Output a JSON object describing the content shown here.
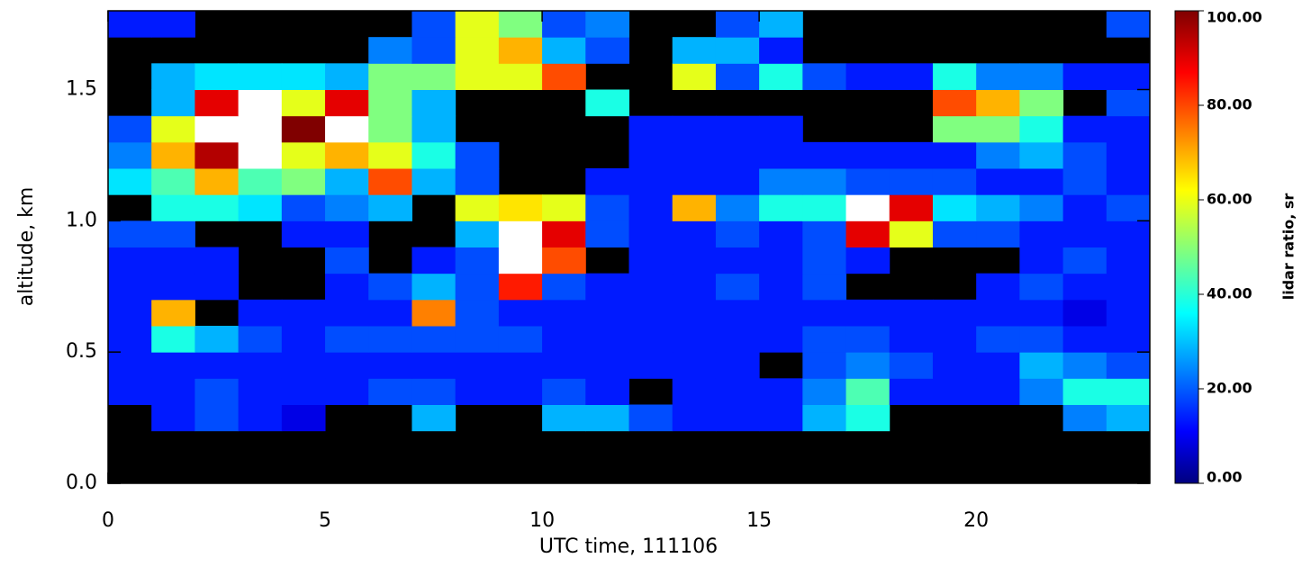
{
  "chart_data": {
    "type": "heatmap",
    "xlabel": "UTC time, 111106",
    "ylabel": "altitude, km",
    "zlabel": "lidar ratio, sr",
    "x": [
      0.5,
      1.5,
      2.5,
      3.5,
      4.5,
      5.5,
      6.5,
      7.5,
      8.5,
      9.5,
      10.5,
      11.5,
      12.5,
      13.5,
      14.5,
      15.5,
      16.5,
      17.5,
      18.5,
      19.5,
      20.5,
      21.5,
      22.5,
      23.5
    ],
    "y": [
      0.05,
      0.15,
      0.25,
      0.35,
      0.45,
      0.55,
      0.65,
      0.75,
      0.85,
      0.95,
      1.05,
      1.15,
      1.25,
      1.35,
      1.45,
      1.55,
      1.65,
      1.75
    ],
    "values": [
      [
        null,
        null,
        null,
        null,
        null,
        null,
        null,
        null,
        null,
        null,
        null,
        null,
        null,
        null,
        null,
        null,
        null,
        null,
        null,
        null,
        null,
        null,
        null,
        null
      ],
      [
        null,
        null,
        null,
        null,
        null,
        null,
        null,
        null,
        null,
        null,
        null,
        null,
        null,
        null,
        null,
        null,
        null,
        null,
        null,
        null,
        null,
        null,
        null,
        null
      ],
      [
        null,
        15,
        20,
        15,
        10,
        null,
        null,
        30,
        null,
        null,
        30,
        30,
        20,
        15,
        15,
        15,
        30,
        40,
        null,
        null,
        null,
        null,
        25,
        30
      ],
      [
        15,
        15,
        20,
        15,
        15,
        15,
        20,
        20,
        15,
        15,
        20,
        15,
        null,
        15,
        15,
        15,
        25,
        45,
        15,
        15,
        15,
        25,
        40,
        40
      ],
      [
        15,
        15,
        15,
        15,
        15,
        15,
        15,
        15,
        15,
        15,
        15,
        15,
        15,
        15,
        15,
        null,
        20,
        25,
        20,
        15,
        15,
        30,
        25,
        20
      ],
      [
        15,
        40,
        30,
        20,
        15,
        20,
        20,
        20,
        20,
        20,
        15,
        15,
        15,
        15,
        15,
        15,
        20,
        20,
        15,
        15,
        20,
        20,
        15,
        15
      ],
      [
        15,
        70,
        null,
        15,
        15,
        15,
        15,
        75,
        20,
        15,
        15,
        15,
        15,
        15,
        15,
        15,
        15,
        15,
        15,
        15,
        15,
        15,
        10,
        15
      ],
      [
        15,
        15,
        15,
        null,
        null,
        15,
        20,
        30,
        20,
        85,
        20,
        15,
        15,
        15,
        20,
        15,
        20,
        null,
        null,
        null,
        15,
        20,
        15,
        15
      ],
      [
        15,
        15,
        15,
        null,
        null,
        20,
        null,
        15,
        20,
        110,
        80,
        null,
        15,
        15,
        15,
        15,
        20,
        15,
        null,
        null,
        null,
        15,
        20,
        15
      ],
      [
        20,
        20,
        null,
        null,
        15,
        15,
        null,
        null,
        30,
        110,
        90,
        20,
        15,
        15,
        20,
        15,
        20,
        90,
        60,
        20,
        20,
        15,
        15,
        15
      ],
      [
        null,
        40,
        40,
        35,
        20,
        25,
        30,
        null,
        60,
        65,
        60,
        20,
        15,
        70,
        25,
        40,
        40,
        110,
        90,
        35,
        30,
        25,
        15,
        20
      ],
      [
        35,
        45,
        70,
        45,
        50,
        30,
        80,
        30,
        20,
        null,
        null,
        15,
        15,
        15,
        15,
        25,
        25,
        20,
        20,
        20,
        15,
        15,
        20,
        15
      ],
      [
        25,
        70,
        95,
        110,
        60,
        70,
        60,
        40,
        20,
        null,
        null,
        null,
        15,
        15,
        15,
        15,
        15,
        15,
        15,
        15,
        25,
        30,
        20,
        15
      ],
      [
        20,
        60,
        110,
        110,
        100,
        110,
        50,
        30,
        null,
        null,
        null,
        null,
        15,
        15,
        15,
        15,
        null,
        null,
        null,
        50,
        50,
        40,
        15,
        15
      ],
      [
        null,
        30,
        90,
        110,
        60,
        90,
        50,
        30,
        null,
        null,
        null,
        40,
        null,
        null,
        null,
        null,
        null,
        null,
        null,
        80,
        70,
        50,
        null,
        20
      ],
      [
        null,
        30,
        35,
        35,
        35,
        30,
        50,
        50,
        60,
        60,
        80,
        null,
        null,
        60,
        20,
        40,
        20,
        15,
        15,
        40,
        25,
        25,
        15,
        15
      ],
      [
        null,
        null,
        null,
        null,
        null,
        null,
        25,
        20,
        60,
        70,
        30,
        20,
        null,
        30,
        30,
        15,
        null,
        null,
        null,
        null,
        null,
        null,
        null,
        null
      ],
      [
        15,
        15,
        null,
        null,
        null,
        null,
        null,
        20,
        60,
        50,
        20,
        25,
        null,
        null,
        20,
        30,
        null,
        null,
        null,
        null,
        null,
        null,
        null,
        20
      ]
    ],
    "xlim": [
      0,
      24
    ],
    "xticks": [
      0,
      5,
      10,
      15,
      20
    ],
    "ylim": [
      0,
      1.8
    ],
    "yticks": [
      {
        "value": 0,
        "label": "0.0"
      },
      0.5,
      {
        "value": 1,
        "label": "1.0"
      },
      1.5
    ],
    "zlim": [
      0,
      100
    ],
    "zticks": [
      {
        "value": 0,
        "label": "0.00"
      },
      {
        "value": 20,
        "label": "20.00"
      },
      {
        "value": 40,
        "label": "40.00"
      },
      {
        "value": 60,
        "label": "60.00"
      },
      {
        "value": 80,
        "label": "80.00"
      },
      {
        "value": 100,
        "label": "100.00"
      }
    ],
    "colormap": "jet",
    "missing_color": "#000000",
    "over_color": "#ffffff"
  }
}
